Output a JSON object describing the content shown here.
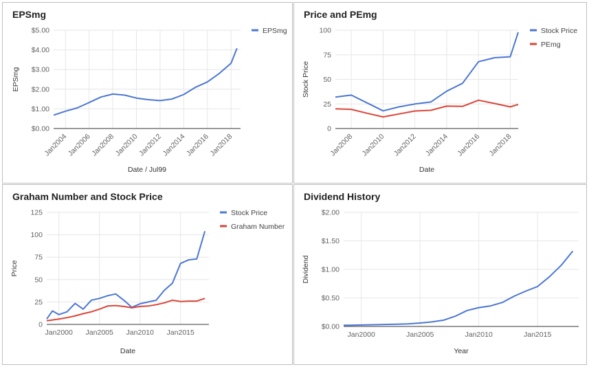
{
  "chart_data": [
    {
      "type": "line",
      "title": "EPSmg",
      "xlabel": "Date / Jul99",
      "ylabel": "EPSmg",
      "ylim": [
        0,
        5
      ],
      "yticks": [
        "$0.00",
        "$1.00",
        "$2.00",
        "$3.00",
        "$4.00",
        "$5.00"
      ],
      "xticks": [
        "Jan2004",
        "Jan2006",
        "Jan2008",
        "Jan2010",
        "Jan2012",
        "Jan2014",
        "Jan2016",
        "Jan2018"
      ],
      "xrange": [
        2003.0,
        2018.8
      ],
      "grid": true,
      "legend_position": "right",
      "series": [
        {
          "name": "EPSmg",
          "color": "#4a76d4",
          "x": [
            2003.0,
            2004.0,
            2005.0,
            2006.0,
            2007.0,
            2008.0,
            2009.0,
            2010.0,
            2011.0,
            2012.0,
            2013.0,
            2014.0,
            2015.0,
            2016.0,
            2017.0,
            2018.0,
            2018.5
          ],
          "values": [
            0.68,
            0.88,
            1.05,
            1.32,
            1.6,
            1.75,
            1.7,
            1.55,
            1.47,
            1.42,
            1.5,
            1.73,
            2.1,
            2.37,
            2.8,
            3.32,
            4.08
          ]
        }
      ]
    },
    {
      "type": "line",
      "title": "Price and PEmg",
      "xlabel": "Date",
      "ylabel": "Stock Price",
      "ylim": [
        0,
        100
      ],
      "yticks": [
        "0",
        "25",
        "50",
        "75",
        "100"
      ],
      "xticks": [
        "Jan2008",
        "Jan2010",
        "Jan2012",
        "Jan2014",
        "Jan2016",
        "Jan2018"
      ],
      "xrange": [
        2007.0,
        2018.5
      ],
      "grid": true,
      "legend_position": "right",
      "series": [
        {
          "name": "Stock Price",
          "color": "#4a76d4",
          "x": [
            2007.0,
            2008.0,
            2009.0,
            2010.0,
            2011.0,
            2012.0,
            2013.0,
            2014.0,
            2015.0,
            2016.0,
            2017.0,
            2018.0,
            2018.5
          ],
          "values": [
            32,
            34,
            26,
            18,
            22,
            25,
            27,
            38,
            46,
            68,
            72,
            73,
            98
          ]
        },
        {
          "name": "PEmg",
          "color": "#db4437",
          "x": [
            2007.0,
            2008.0,
            2009.0,
            2010.0,
            2011.0,
            2012.0,
            2013.0,
            2014.0,
            2015.0,
            2016.0,
            2017.0,
            2018.0,
            2018.5
          ],
          "values": [
            20,
            19.5,
            15.5,
            11.8,
            14.8,
            17.8,
            18.5,
            22.8,
            22.5,
            28.8,
            25.5,
            22,
            24.5
          ]
        }
      ]
    },
    {
      "type": "line",
      "title": "Graham Number and Stock Price",
      "xlabel": "Date",
      "ylabel": "Price",
      "ylim": [
        0,
        125
      ],
      "yticks": [
        "0",
        "25",
        "50",
        "75",
        "100",
        "125"
      ],
      "xticks": [
        "Jan2000",
        "Jan2005",
        "Jan2010",
        "Jan2015"
      ],
      "xrange": [
        1998.5,
        2018.5
      ],
      "grid": true,
      "legend_position": "right",
      "series": [
        {
          "name": "Stock Price",
          "color": "#4a76d4",
          "x": [
            1998.5,
            1999.2,
            2000.0,
            2001.0,
            2002.0,
            2003.0,
            2004.0,
            2005.0,
            2006.0,
            2007.0,
            2008.0,
            2009.0,
            2010.0,
            2011.0,
            2012.0,
            2013.0,
            2014.0,
            2015.0,
            2016.0,
            2017.0,
            2018.0
          ],
          "values": [
            6,
            15,
            11,
            14,
            23.5,
            17,
            27,
            29,
            32,
            34,
            27,
            19,
            23,
            25,
            27,
            38,
            46,
            68,
            72,
            73,
            104
          ]
        },
        {
          "name": "Graham Number",
          "color": "#db4437",
          "x": [
            1998.5,
            2000.0,
            2001.0,
            2002.0,
            2003.0,
            2004.0,
            2005.0,
            2006.0,
            2007.0,
            2008.0,
            2009.0,
            2010.0,
            2011.0,
            2012.0,
            2013.0,
            2014.0,
            2015.0,
            2016.0,
            2017.0,
            2018.0
          ],
          "values": [
            4,
            6,
            7.5,
            9.5,
            12,
            14,
            17,
            20.5,
            21,
            20,
            18.5,
            20,
            20.5,
            22,
            24,
            27,
            25.5,
            26,
            26,
            29
          ]
        }
      ]
    },
    {
      "type": "line",
      "title": "Dividend History",
      "xlabel": "Year",
      "ylabel": "Dividend",
      "ylim": [
        0,
        2
      ],
      "yticks": [
        "$0.00",
        "$0.50",
        "$1.00",
        "$1.50",
        "$2.00"
      ],
      "xticks": [
        "Jan2000",
        "Jan2005",
        "Jan2010",
        "Jan2015"
      ],
      "xrange": [
        1998.5,
        2018.5
      ],
      "grid": true,
      "series": [
        {
          "color": "#4a76d4",
          "x": [
            1998.5,
            1999.0,
            2000.0,
            2001.0,
            2002.0,
            2003.0,
            2004.0,
            2005.0,
            2006.0,
            2007.0,
            2008.0,
            2009.0,
            2010.0,
            2011.0,
            2012.0,
            2013.0,
            2014.0,
            2015.0,
            2016.0,
            2017.0,
            2018.0
          ],
          "values": [
            0.02,
            0.02,
            0.025,
            0.03,
            0.035,
            0.04,
            0.045,
            0.06,
            0.08,
            0.11,
            0.18,
            0.28,
            0.33,
            0.36,
            0.42,
            0.53,
            0.62,
            0.7,
            0.87,
            1.07,
            1.32
          ]
        }
      ]
    }
  ]
}
